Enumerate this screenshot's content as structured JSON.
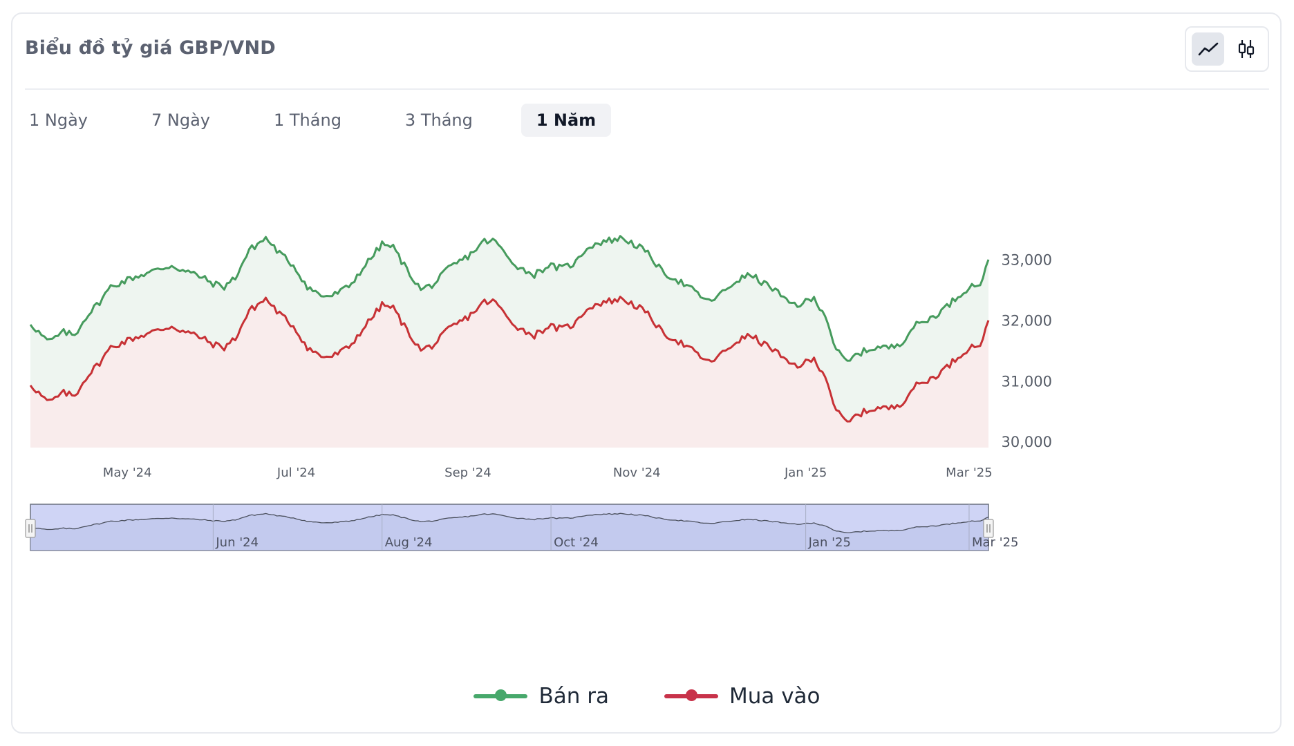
{
  "card": {
    "title": "Biểu đồ tỷ giá GBP/VND"
  },
  "chart_type_buttons": [
    {
      "icon": "line-chart-icon",
      "active": true
    },
    {
      "icon": "candlestick-icon",
      "active": false
    }
  ],
  "tabs": [
    {
      "label": "1 Ngày",
      "active": false
    },
    {
      "label": "7 Ngày",
      "active": false
    },
    {
      "label": "1 Tháng",
      "active": false
    },
    {
      "label": "3 Tháng",
      "active": false
    },
    {
      "label": "1 Năm",
      "active": true
    }
  ],
  "colors": {
    "sell": "#469b5d",
    "buy": "#c73135",
    "sell_fill": "#eef5f0",
    "buy_fill": "#f9ecec",
    "navigator_fill": "#cfd4f5",
    "navigator_border": "#6b7280",
    "legend_sell": "#47a86b",
    "legend_buy": "#c8324a"
  },
  "chart_data": {
    "type": "area",
    "title": "Biểu đồ tỷ giá GBP/VND",
    "x_range": [
      "2024-03-27",
      "2025-03-08"
    ],
    "ylim": [
      29900,
      34200
    ],
    "yticks": [
      30000,
      31000,
      32000,
      33000
    ],
    "ytick_labels": [
      "30,000",
      "31,000",
      "32,000",
      "33,000"
    ],
    "grid": false,
    "legend_position": "bottom-center",
    "xticks": [
      {
        "date": "2024-05-01",
        "label": "May '24"
      },
      {
        "date": "2024-07-01",
        "label": "Jul '24"
      },
      {
        "date": "2024-09-01",
        "label": "Sep '24"
      },
      {
        "date": "2024-11-01",
        "label": "Nov '24"
      },
      {
        "date": "2025-01-01",
        "label": "Jan '25"
      },
      {
        "date": "2025-03-01",
        "label": "Mar '25"
      }
    ],
    "navigator_ticks": [
      {
        "date": "2024-06-01",
        "label": "Jun '24"
      },
      {
        "date": "2024-08-01",
        "label": "Aug '24"
      },
      {
        "date": "2024-10-01",
        "label": "Oct '24"
      },
      {
        "date": "2025-01-01",
        "label": "Jan '25"
      },
      {
        "date": "2025-03-01",
        "label": "Mar '25"
      }
    ],
    "series": [
      {
        "name": "Bán ra",
        "dates": [
          "2024-03-27",
          "2024-04-01",
          "2024-04-03",
          "2024-04-08",
          "2024-04-12",
          "2024-04-16",
          "2024-04-21",
          "2024-04-25",
          "2024-05-03",
          "2024-05-10",
          "2024-05-17",
          "2024-05-22",
          "2024-05-26",
          "2024-06-01",
          "2024-06-05",
          "2024-06-09",
          "2024-06-14",
          "2024-06-20",
          "2024-06-25",
          "2024-06-30",
          "2024-07-05",
          "2024-07-10",
          "2024-07-14",
          "2024-07-20",
          "2024-07-25",
          "2024-08-01",
          "2024-08-05",
          "2024-08-09",
          "2024-08-15",
          "2024-08-20",
          "2024-08-25",
          "2024-09-01",
          "2024-09-07",
          "2024-09-11",
          "2024-09-15",
          "2024-09-20",
          "2024-09-25",
          "2024-09-30",
          "2024-10-05",
          "2024-10-10",
          "2024-10-14",
          "2024-10-20",
          "2024-10-27",
          "2024-11-02",
          "2024-11-06",
          "2024-11-10",
          "2024-11-16",
          "2024-11-21",
          "2024-11-27",
          "2024-12-02",
          "2024-12-07",
          "2024-12-12",
          "2024-12-17",
          "2024-12-21",
          "2024-12-25",
          "2024-12-29",
          "2025-01-04",
          "2025-01-08",
          "2025-01-12",
          "2025-01-16",
          "2025-01-20",
          "2025-01-26",
          "2025-02-01",
          "2025-02-05",
          "2025-02-09",
          "2025-02-14",
          "2025-02-19",
          "2025-02-24",
          "2025-03-01",
          "2025-03-05",
          "2025-03-08"
        ],
        "values": [
          31950,
          31700,
          31650,
          31800,
          31750,
          32050,
          32300,
          32550,
          32700,
          32800,
          32900,
          32800,
          32750,
          32600,
          32550,
          32700,
          33150,
          33350,
          33100,
          32900,
          32550,
          32400,
          32400,
          32550,
          32850,
          33250,
          33200,
          32900,
          32500,
          32600,
          32850,
          33050,
          33300,
          33300,
          33050,
          32850,
          32750,
          32900,
          32850,
          32950,
          33200,
          33300,
          33350,
          33200,
          33050,
          32800,
          32650,
          32500,
          32300,
          32450,
          32650,
          32750,
          32600,
          32500,
          32300,
          32250,
          32350,
          32100,
          31500,
          31300,
          31450,
          31550,
          31550,
          31650,
          31900,
          32000,
          32150,
          32350,
          32550,
          32600,
          32950
        ]
      },
      {
        "name": "Mua vào",
        "dates": [
          "2024-03-27",
          "2024-04-01",
          "2024-04-03",
          "2024-04-08",
          "2024-04-12",
          "2024-04-16",
          "2024-04-21",
          "2024-04-25",
          "2024-05-03",
          "2024-05-10",
          "2024-05-17",
          "2024-05-22",
          "2024-05-26",
          "2024-06-01",
          "2024-06-05",
          "2024-06-09",
          "2024-06-14",
          "2024-06-20",
          "2024-06-25",
          "2024-06-30",
          "2024-07-05",
          "2024-07-10",
          "2024-07-14",
          "2024-07-20",
          "2024-07-25",
          "2024-08-01",
          "2024-08-05",
          "2024-08-09",
          "2024-08-15",
          "2024-08-20",
          "2024-08-25",
          "2024-09-01",
          "2024-09-07",
          "2024-09-11",
          "2024-09-15",
          "2024-09-20",
          "2024-09-25",
          "2024-09-30",
          "2024-10-05",
          "2024-10-10",
          "2024-10-14",
          "2024-10-20",
          "2024-10-27",
          "2024-11-02",
          "2024-11-06",
          "2024-11-10",
          "2024-11-16",
          "2024-11-21",
          "2024-11-27",
          "2024-12-02",
          "2024-12-07",
          "2024-12-12",
          "2024-12-17",
          "2024-12-21",
          "2024-12-25",
          "2024-12-29",
          "2025-01-04",
          "2025-01-08",
          "2025-01-12",
          "2025-01-16",
          "2025-01-20",
          "2025-01-26",
          "2025-02-01",
          "2025-02-05",
          "2025-02-09",
          "2025-02-14",
          "2025-02-19",
          "2025-02-24",
          "2025-03-01",
          "2025-03-05",
          "2025-03-08"
        ],
        "values": [
          30950,
          30700,
          30650,
          30800,
          30750,
          31050,
          31300,
          31550,
          31700,
          31800,
          31900,
          31800,
          31750,
          31600,
          31550,
          31700,
          32150,
          32350,
          32100,
          31900,
          31550,
          31400,
          31400,
          31550,
          31850,
          32250,
          32200,
          31900,
          31500,
          31600,
          31850,
          32050,
          32300,
          32300,
          32050,
          31850,
          31750,
          31900,
          31850,
          31950,
          32200,
          32300,
          32350,
          32200,
          32050,
          31800,
          31650,
          31500,
          31300,
          31450,
          31650,
          31750,
          31600,
          31500,
          31300,
          31250,
          31350,
          31100,
          30500,
          30300,
          30450,
          30550,
          30550,
          30650,
          30900,
          31000,
          31150,
          31350,
          31550,
          31600,
          31950
        ]
      }
    ]
  },
  "legend": {
    "sell_label": "Bán ra",
    "buy_label": "Mua vào"
  }
}
